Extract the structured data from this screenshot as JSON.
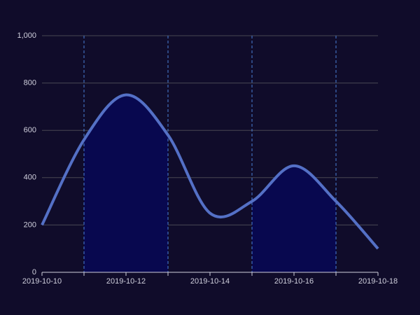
{
  "chart_data": {
    "type": "line",
    "categories": [
      "2019-10-10",
      null,
      "2019-10-12",
      null,
      "2019-10-14",
      null,
      "2019-10-16",
      null,
      "2019-10-18"
    ],
    "values": [
      200,
      560,
      750,
      580,
      250,
      300,
      450,
      300,
      100
    ],
    "color": "#5470c6",
    "area_color": "#08084f",
    "mark_areas": [
      {
        "from": 1,
        "to": 3
      },
      {
        "from": 5,
        "to": 7
      }
    ],
    "ylim": [
      0,
      1000
    ],
    "yticks": [
      0,
      200,
      400,
      600,
      800,
      {
        "value": 1000,
        "label": "1,000"
      }
    ],
    "grid": true
  }
}
